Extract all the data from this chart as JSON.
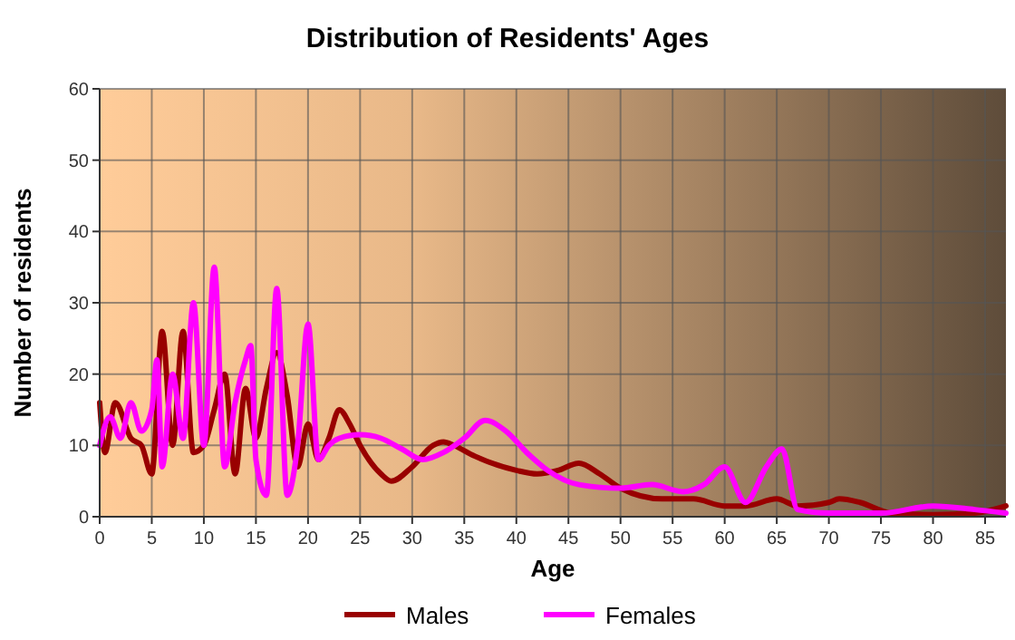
{
  "chart_data": {
    "type": "line",
    "title": "Distribution of Residents' Ages",
    "xlabel": "Age",
    "ylabel": "Number of residents",
    "xlim": [
      0,
      87
    ],
    "ylim": [
      0,
      60
    ],
    "xticks": [
      0,
      5,
      10,
      15,
      20,
      25,
      30,
      35,
      40,
      45,
      50,
      55,
      60,
      65,
      70,
      75,
      80,
      85
    ],
    "yticks": [
      0,
      10,
      20,
      30,
      40,
      50,
      60
    ],
    "grid": true,
    "legend": "bottom",
    "marker": "none",
    "line_style": "solid",
    "series": [
      {
        "name": "Males",
        "color": "#990000",
        "x": [
          0,
          0.5,
          1.5,
          3,
          4,
          5,
          6,
          7,
          8,
          9,
          10,
          11,
          12,
          13,
          14,
          15,
          16,
          17,
          18,
          19,
          20,
          21,
          22,
          23,
          24,
          25,
          27,
          28,
          30,
          32,
          33,
          34,
          36,
          40,
          42,
          44,
          46,
          48,
          50,
          54,
          57,
          60,
          62,
          65,
          67,
          70,
          71,
          73,
          76,
          80,
          84,
          87
        ],
        "values": [
          16,
          9,
          16,
          11,
          10,
          6,
          26,
          10,
          26,
          9,
          10,
          15,
          20,
          6,
          18,
          11,
          18,
          23,
          17,
          7,
          13,
          8,
          11,
          15,
          13,
          10,
          6,
          5,
          7,
          10,
          10.5,
          10,
          8.5,
          6.5,
          6,
          6.5,
          7.5,
          6,
          4,
          2.5,
          2.5,
          1.5,
          1.5,
          2.5,
          1.5,
          2,
          2.5,
          2,
          0.5,
          0.3,
          0.5,
          1.5
        ]
      },
      {
        "name": "Females",
        "color": "#ff00ff",
        "x": [
          0,
          1,
          2,
          3,
          4,
          5,
          5.5,
          6,
          7,
          8,
          9,
          10,
          11,
          12,
          13,
          14,
          14.5,
          15,
          16,
          17,
          18,
          19,
          20,
          21,
          22,
          23,
          25,
          27,
          29,
          31,
          33,
          35,
          37,
          39,
          41,
          43,
          46,
          50,
          53,
          56,
          58,
          60,
          62,
          64,
          65.5,
          67,
          70,
          75,
          80,
          84,
          87
        ],
        "values": [
          10,
          14,
          11,
          16,
          12,
          15,
          22,
          7,
          20,
          11,
          30,
          10,
          35,
          7,
          16,
          22,
          24,
          8,
          3,
          32,
          3,
          10,
          27,
          8,
          10,
          11,
          11.5,
          11,
          9.5,
          8,
          9,
          11,
          13.5,
          12,
          9,
          6.5,
          4.5,
          4,
          4.5,
          3.5,
          4.5,
          7,
          2,
          7,
          9.5,
          1,
          0.5,
          0.5,
          1.5,
          1,
          0.5
        ]
      }
    ]
  }
}
